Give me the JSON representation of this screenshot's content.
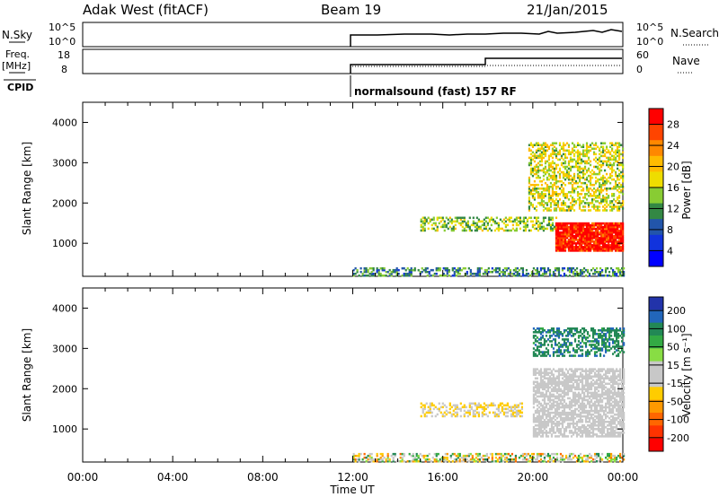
{
  "header": {
    "site": "Adak West (fitACF)",
    "beam": "Beam 19",
    "date": "21/Jan/2015"
  },
  "strips": {
    "nsky_label": "N.Sky",
    "nsearch_label": "N.Search",
    "freq_label": "Freq.",
    "freq_unit": "[MHz]",
    "nave_label": "Nave",
    "cpid_label": "CPID",
    "cpid_value": "normalsound (fast) 157 RF",
    "nsky_ticks": [
      "10^5",
      "10^0"
    ],
    "nsearch_ticks": [
      "10^5",
      "10^0"
    ],
    "freq_ticks": [
      "18",
      "8"
    ],
    "nave_ticks": [
      "60",
      "0"
    ]
  },
  "colorbars": {
    "power": {
      "label": "Power [dB]",
      "ticks": [
        "28",
        "24",
        "20",
        "16",
        "12",
        "8",
        "4"
      ],
      "colors": [
        "#ff0000",
        "#ff4400",
        "#ff8800",
        "#ffbb00",
        "#eedd00",
        "#88cc33",
        "#338844",
        "#2255aa",
        "#1133dd",
        "#0000ff"
      ]
    },
    "velocity": {
      "label": "Velocity [m s⁻¹]",
      "ticks": [
        "200",
        "100",
        "50",
        "15",
        "-15",
        "-50",
        "-100",
        "-200"
      ],
      "colors": [
        "#2233aa",
        "#2266bb",
        "#228855",
        "#33aa44",
        "#88dd44",
        "#c8c8c8",
        "#c8c8c8",
        "#ffcc00",
        "#ff9900",
        "#ff6600",
        "#ff3300",
        "#ff0000"
      ]
    }
  },
  "chart_data": [
    {
      "type": "heatmap",
      "parameter": "Power",
      "ylabel": "Slant Range [km]",
      "ylim": [
        180,
        4500
      ],
      "yticks": [
        "4000",
        "3000",
        "2000",
        "1000"
      ],
      "xlim_hours": [
        0,
        24
      ],
      "colorbar_range_dB": [
        0,
        30
      ],
      "regions": [
        {
          "feature": "E/ground band",
          "t_start": 12.0,
          "t_end": 24.0,
          "range_km": [
            180,
            400
          ],
          "level": 10
        },
        {
          "feature": "main echo band",
          "t_start": 15.0,
          "t_end": 21.0,
          "range_km": [
            1300,
            1650
          ],
          "level": 14
        },
        {
          "feature": "strong late echoes",
          "t_start": 21.0,
          "t_end": 24.0,
          "range_km": [
            800,
            1500
          ],
          "level": 28
        },
        {
          "feature": "upper scatter",
          "t_start": 19.8,
          "t_end": 24.0,
          "range_km": [
            1800,
            3500
          ],
          "level": 16
        }
      ]
    },
    {
      "type": "heatmap",
      "parameter": "Velocity",
      "ylabel": "Slant Range [km]",
      "ylim": [
        180,
        4500
      ],
      "yticks": [
        "4000",
        "3000",
        "2000",
        "1000"
      ],
      "xlabel": "Time UT",
      "xticks": [
        "00:00",
        "04:00",
        "08:00",
        "12:00",
        "16:00",
        "20:00",
        "00:00"
      ],
      "xlim_hours": [
        0,
        24
      ],
      "colorbar_range": [
        -250,
        250
      ],
      "regions": [
        {
          "feature": "ground scatter band",
          "t_start": 12.0,
          "t_end": 24.0,
          "range_km": [
            180,
            400
          ],
          "velocity": 0
        },
        {
          "feature": "main echo band",
          "t_start": 15.0,
          "t_end": 19.5,
          "range_km": [
            1300,
            1650
          ],
          "velocity": -40
        },
        {
          "feature": "late ground scatter",
          "t_start": 20.0,
          "t_end": 24.0,
          "range_km": [
            800,
            2500
          ],
          "velocity": 0
        },
        {
          "feature": "upper scatter",
          "t_start": 20.0,
          "t_end": 24.0,
          "range_km": [
            2800,
            3500
          ],
          "velocity": 150
        }
      ]
    }
  ]
}
